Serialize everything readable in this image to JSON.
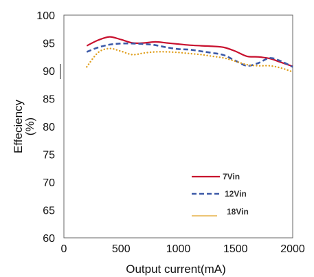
{
  "chart_data": {
    "type": "line",
    "title": "",
    "xlabel": "Output current(mA)",
    "ylabel": "Effeciency (%)",
    "ylabel_lines": [
      "Effeciency",
      "(%)"
    ],
    "xlim": [
      0,
      2000
    ],
    "ylim": [
      60,
      100
    ],
    "xticks": [
      0,
      500,
      1000,
      1500,
      2000
    ],
    "xtick_labels": [
      "0",
      "500",
      "1000",
      "1500",
      "2000"
    ],
    "yticks": [
      60,
      65,
      70,
      75,
      80,
      85,
      90,
      95,
      100
    ],
    "ytick_labels": [
      "60",
      "65",
      "70",
      "75",
      "80",
      "85",
      "90",
      "95",
      "100"
    ],
    "grid": false,
    "legend_position": "bottom-right",
    "series": [
      {
        "name": "7Vin",
        "color": "#c8102e",
        "style": "solid",
        "x": [
          200,
          300,
          400,
          500,
          600,
          700,
          800,
          900,
          1000,
          1100,
          1200,
          1300,
          1400,
          1500,
          1600,
          1700,
          1800,
          1900,
          2000
        ],
        "y": [
          94.5,
          95.5,
          96.1,
          95.6,
          95.0,
          95.0,
          95.2,
          95.0,
          94.8,
          94.6,
          94.5,
          94.4,
          94.2,
          93.5,
          92.6,
          92.5,
          92.2,
          91.5,
          90.8
        ]
      },
      {
        "name": "12Vin",
        "color": "#3d5aa8",
        "style": "dashed",
        "x": [
          200,
          300,
          400,
          500,
          600,
          700,
          800,
          900,
          1000,
          1100,
          1200,
          1300,
          1400,
          1500,
          1600,
          1700,
          1800,
          1900,
          2000
        ],
        "y": [
          93.4,
          94.2,
          94.7,
          94.9,
          94.9,
          94.8,
          94.6,
          94.2,
          93.9,
          93.8,
          93.5,
          93.2,
          92.8,
          91.8,
          90.9,
          91.4,
          92.3,
          91.7,
          90.7
        ]
      },
      {
        "name": "18Vin",
        "color": "#e0a020",
        "style": "dotted",
        "x": [
          200,
          300,
          400,
          500,
          600,
          700,
          800,
          900,
          1000,
          1100,
          1200,
          1300,
          1400,
          1500,
          1600,
          1700,
          1800,
          1900,
          2000
        ],
        "y": [
          90.7,
          93.3,
          94.0,
          93.5,
          92.9,
          93.2,
          93.4,
          93.4,
          93.3,
          93.1,
          92.9,
          92.6,
          92.3,
          91.7,
          91.1,
          90.9,
          90.9,
          90.5,
          89.8
        ]
      }
    ]
  }
}
